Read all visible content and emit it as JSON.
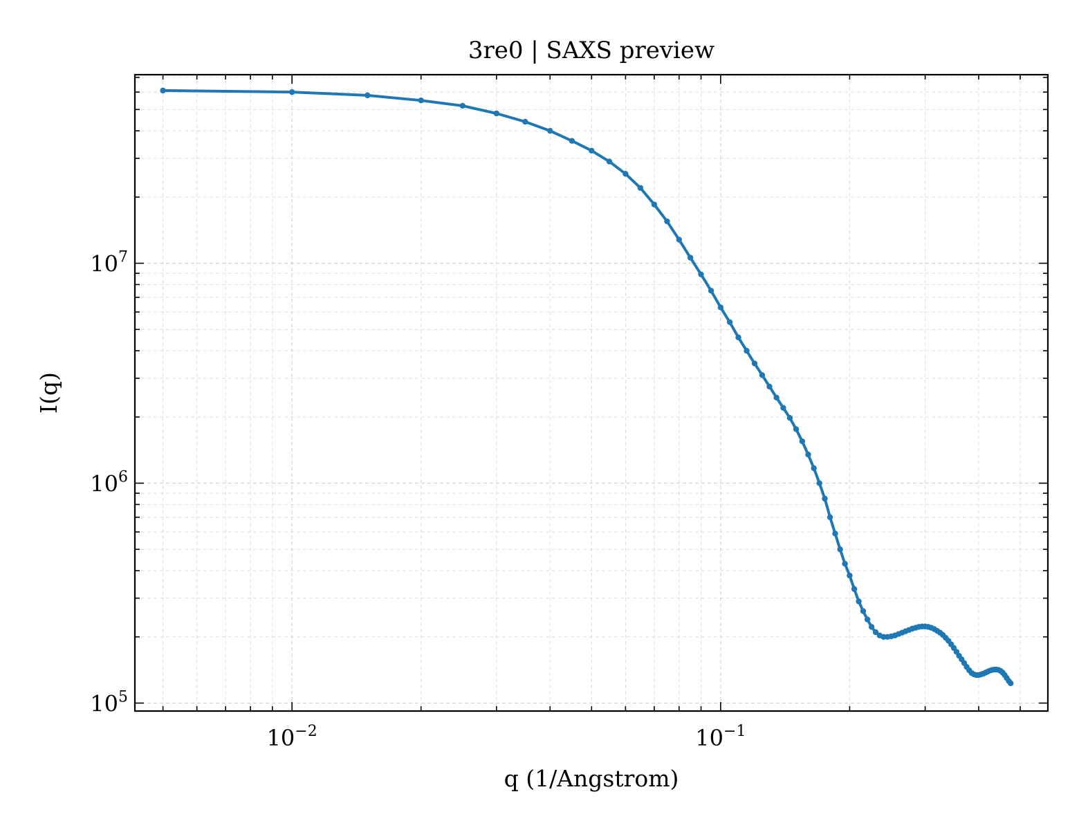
{
  "chart_data": {
    "type": "line",
    "title": "3re0 | SAXS preview",
    "xlabel": "q (1/Angstrom)",
    "ylabel": "I(q)",
    "xscale": "log",
    "yscale": "log",
    "xlim": [
      0.0043,
      0.58
    ],
    "ylim": [
      92000,
      72000000
    ],
    "grid": true,
    "legend": "none",
    "line_color": "#1f77b4",
    "x_ticks": [
      {
        "value": 0.01,
        "base": "10",
        "exp": "−2"
      },
      {
        "value": 0.1,
        "base": "10",
        "exp": "−1"
      }
    ],
    "y_ticks": [
      {
        "value": 100000,
        "base": "10",
        "exp": "5"
      },
      {
        "value": 1000000,
        "base": "10",
        "exp": "6"
      },
      {
        "value": 10000000,
        "base": "10",
        "exp": "7"
      }
    ],
    "series": [
      {
        "points": [
          [
            0.005,
            61000000
          ],
          [
            0.01,
            60000000
          ],
          [
            0.015,
            58000000
          ],
          [
            0.02,
            55000000
          ],
          [
            0.025,
            52000000
          ],
          [
            0.03,
            48000000
          ],
          [
            0.035,
            44000000
          ],
          [
            0.04,
            40000000
          ],
          [
            0.045,
            36000000
          ],
          [
            0.05,
            32500000
          ],
          [
            0.055,
            29000000
          ],
          [
            0.06,
            25500000
          ],
          [
            0.065,
            22000000
          ],
          [
            0.07,
            18500000
          ],
          [
            0.075,
            15500000
          ],
          [
            0.08,
            12800000
          ],
          [
            0.085,
            10600000
          ],
          [
            0.09,
            8900000
          ],
          [
            0.095,
            7500000
          ],
          [
            0.1,
            6300000
          ],
          [
            0.105,
            5400000
          ],
          [
            0.11,
            4600000
          ],
          [
            0.115,
            4000000
          ],
          [
            0.12,
            3500000
          ],
          [
            0.125,
            3100000
          ],
          [
            0.13,
            2750000
          ],
          [
            0.135,
            2450000
          ],
          [
            0.14,
            2200000
          ],
          [
            0.145,
            1980000
          ],
          [
            0.15,
            1760000
          ],
          [
            0.155,
            1550000
          ],
          [
            0.16,
            1350000
          ],
          [
            0.165,
            1170000
          ],
          [
            0.17,
            1000000
          ],
          [
            0.175,
            850000
          ],
          [
            0.18,
            700000
          ],
          [
            0.185,
            590000
          ],
          [
            0.19,
            500000
          ],
          [
            0.195,
            430000
          ],
          [
            0.2,
            380000
          ],
          [
            0.205,
            330000
          ],
          [
            0.21,
            290000
          ],
          [
            0.215,
            262000
          ],
          [
            0.22,
            240000
          ],
          [
            0.225,
            222000
          ],
          [
            0.23,
            210000
          ],
          [
            0.235,
            203000
          ],
          [
            0.24,
            200000
          ],
          [
            0.245,
            200000
          ],
          [
            0.25,
            201000
          ],
          [
            0.255,
            203000
          ],
          [
            0.26,
            206000
          ],
          [
            0.265,
            209000
          ],
          [
            0.27,
            212000
          ],
          [
            0.275,
            215000
          ],
          [
            0.28,
            218000
          ],
          [
            0.285,
            220000
          ],
          [
            0.29,
            222000
          ],
          [
            0.295,
            223000
          ],
          [
            0.3,
            223000
          ],
          [
            0.305,
            222000
          ],
          [
            0.31,
            220000
          ],
          [
            0.315,
            217000
          ],
          [
            0.32,
            213000
          ],
          [
            0.325,
            209000
          ],
          [
            0.33,
            204000
          ],
          [
            0.335,
            198000
          ],
          [
            0.34,
            192000
          ],
          [
            0.345,
            185000
          ],
          [
            0.35,
            178000
          ],
          [
            0.355,
            171000
          ],
          [
            0.36,
            164000
          ],
          [
            0.365,
            158000
          ],
          [
            0.37,
            152000
          ],
          [
            0.375,
            146000
          ],
          [
            0.38,
            141000
          ],
          [
            0.385,
            137000
          ],
          [
            0.39,
            135000
          ],
          [
            0.395,
            134000
          ],
          [
            0.4,
            134000
          ],
          [
            0.405,
            135000
          ],
          [
            0.41,
            136000
          ],
          [
            0.415,
            137500
          ],
          [
            0.42,
            139000
          ],
          [
            0.425,
            140500
          ],
          [
            0.43,
            141500
          ],
          [
            0.435,
            142000
          ],
          [
            0.44,
            142000
          ],
          [
            0.445,
            141500
          ],
          [
            0.45,
            140000
          ],
          [
            0.455,
            137500
          ],
          [
            0.46,
            134000
          ],
          [
            0.465,
            130000
          ],
          [
            0.47,
            126000
          ],
          [
            0.475,
            123000
          ]
        ]
      }
    ]
  }
}
